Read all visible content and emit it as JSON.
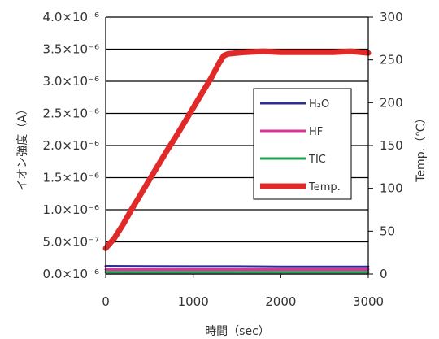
{
  "chart_data": {
    "type": "line",
    "xlabel": "時間（sec）",
    "ylabel_left": "イオン強度（A）",
    "ylabel_right": "Temp.（℃）",
    "xlim": [
      0,
      3000
    ],
    "ylim_left": [
      0,
      4e-06
    ],
    "ylim_right": [
      0,
      300
    ],
    "x_ticks": [
      "0",
      "1000",
      "2000",
      "3000"
    ],
    "y_left_ticks": [
      "0.0×10⁻⁶",
      "5.0×10⁻⁷",
      "1.0×10⁻⁶",
      "1.5×10⁻⁶",
      "2.0×10⁻⁶",
      "2.5×10⁻⁶",
      "3.0×10⁻⁶",
      "3.5×10⁻⁶",
      "4.0×10⁻⁶"
    ],
    "y_right_ticks": [
      "0",
      "50",
      "100",
      "150",
      "200",
      "250",
      "300"
    ],
    "grid": "horizontal",
    "legend_position": "right",
    "series": [
      {
        "name": "H₂O",
        "axis": "left",
        "color": "#2e2e8f",
        "width": 3,
        "x": [
          0,
          500,
          1000,
          1500,
          2000,
          2500,
          3000
        ],
        "y": [
          1.2e-07,
          1.18e-07,
          1.15e-07,
          1.15e-07,
          1.12e-07,
          1.12e-07,
          1.12e-07
        ]
      },
      {
        "name": "HF",
        "axis": "left",
        "color": "#e0309a",
        "width": 3,
        "x": [
          0,
          500,
          1000,
          1500,
          2000,
          2500,
          3000
        ],
        "y": [
          7e-08,
          7e-08,
          7e-08,
          7e-08,
          7e-08,
          7e-08,
          7e-08
        ]
      },
      {
        "name": "TIC",
        "axis": "left",
        "color": "#1aa050",
        "width": 3,
        "x": [
          0,
          500,
          1000,
          1500,
          2000,
          2500,
          3000
        ],
        "y": [
          3e-08,
          3e-08,
          3e-08,
          3e-08,
          3e-08,
          3e-08,
          3e-08
        ]
      },
      {
        "name": "Temp.",
        "axis": "right",
        "color": "#e02a2a",
        "width": 7,
        "x": [
          0,
          100,
          200,
          300,
          400,
          500,
          600,
          700,
          800,
          900,
          1000,
          1100,
          1200,
          1300,
          1350,
          1400,
          1500,
          1600,
          1800,
          2000,
          2200,
          2400,
          2600,
          2800,
          2900,
          3000
        ],
        "y": [
          30,
          42,
          58,
          76,
          93,
          110,
          127,
          144,
          160,
          177,
          194,
          211,
          228,
          247,
          255,
          257,
          258,
          259,
          260,
          259,
          259,
          259,
          259,
          260,
          259,
          258
        ]
      }
    ]
  }
}
